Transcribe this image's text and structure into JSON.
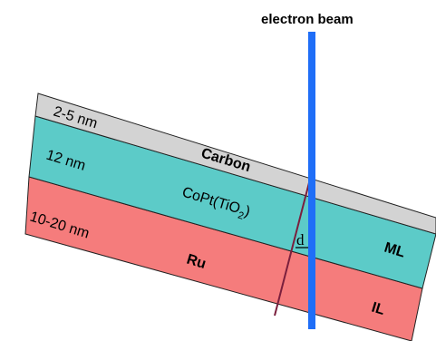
{
  "colors": {
    "carbon": "#d3d3d3",
    "ml": "#5ccbc8",
    "il": "#f57c7c",
    "beam": "#1f6ef7",
    "d_line": "#7a1f3d",
    "outline": "#222222"
  },
  "beam": {
    "label": "electron beam"
  },
  "layers": {
    "carbon": {
      "thickness": "2-5 nm",
      "name": "Carbon"
    },
    "ml": {
      "thickness": "12 nm",
      "name_main": "CoPt(TiO",
      "name_sub": "2",
      "name_close": ")",
      "tag": "ML"
    },
    "il": {
      "thickness": "10-20 nm",
      "name": "Ru",
      "tag": "IL"
    }
  },
  "d_label": "d"
}
